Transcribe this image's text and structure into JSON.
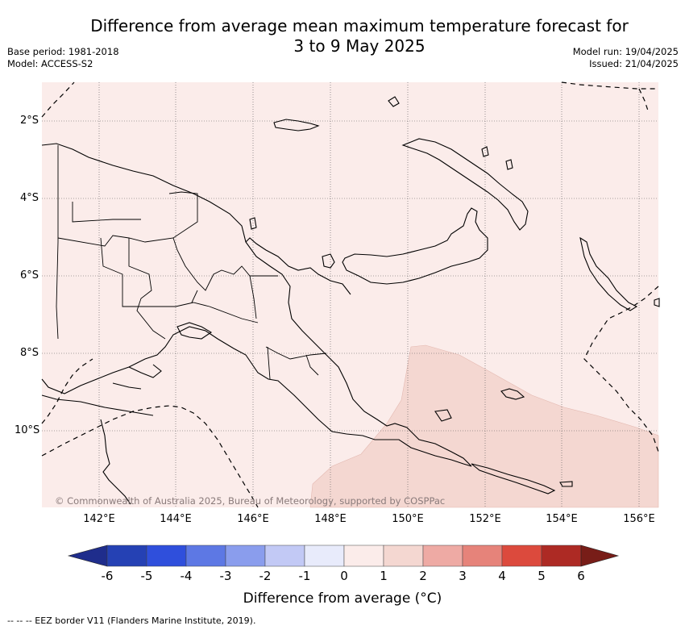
{
  "title_line1": "Difference from average mean maximum temperature forecast for",
  "title_line2": "3 to 9 May 2025",
  "base_period": "Base period: 1981-2018",
  "model": "Model: ACCESS-S2",
  "model_run": "Model run: 19/04/2025",
  "issued": "Issued: 21/04/2025",
  "lon_labels": [
    "142°E",
    "144°E",
    "146°E",
    "148°E",
    "150°E",
    "152°E",
    "154°E",
    "156°E"
  ],
  "lat_labels": [
    "2°S",
    "4°S",
    "6°S",
    "8°S",
    "10°S"
  ],
  "colorbar_ticks": [
    "-6",
    "-5",
    "-4",
    "-3",
    "-2",
    "-1",
    "0",
    "1",
    "2",
    "3",
    "4",
    "5",
    "6"
  ],
  "colorbar_label": "Difference from average (°C)",
  "copyright": "© Commonwealth of Australia 2025, Bureau of Meteorology, supported by COSPPac",
  "footer": "-- -- -- EEZ border V11 (Flanders Marine Institute, 2019).",
  "colors": {
    "bg_0_1": "#fbecea",
    "band_1_2": "#f4d7d1",
    "colorbar": [
      "#1f2d8c",
      "#2541b4",
      "#2f4fdc",
      "#5d78e4",
      "#8a9ded",
      "#c2c9f5",
      "#e8ebfb",
      "#fbecea",
      "#f4d7d1",
      "#eeaaa4",
      "#e6837a",
      "#dc4a3d",
      "#ad2a24",
      "#781d18"
    ]
  }
}
